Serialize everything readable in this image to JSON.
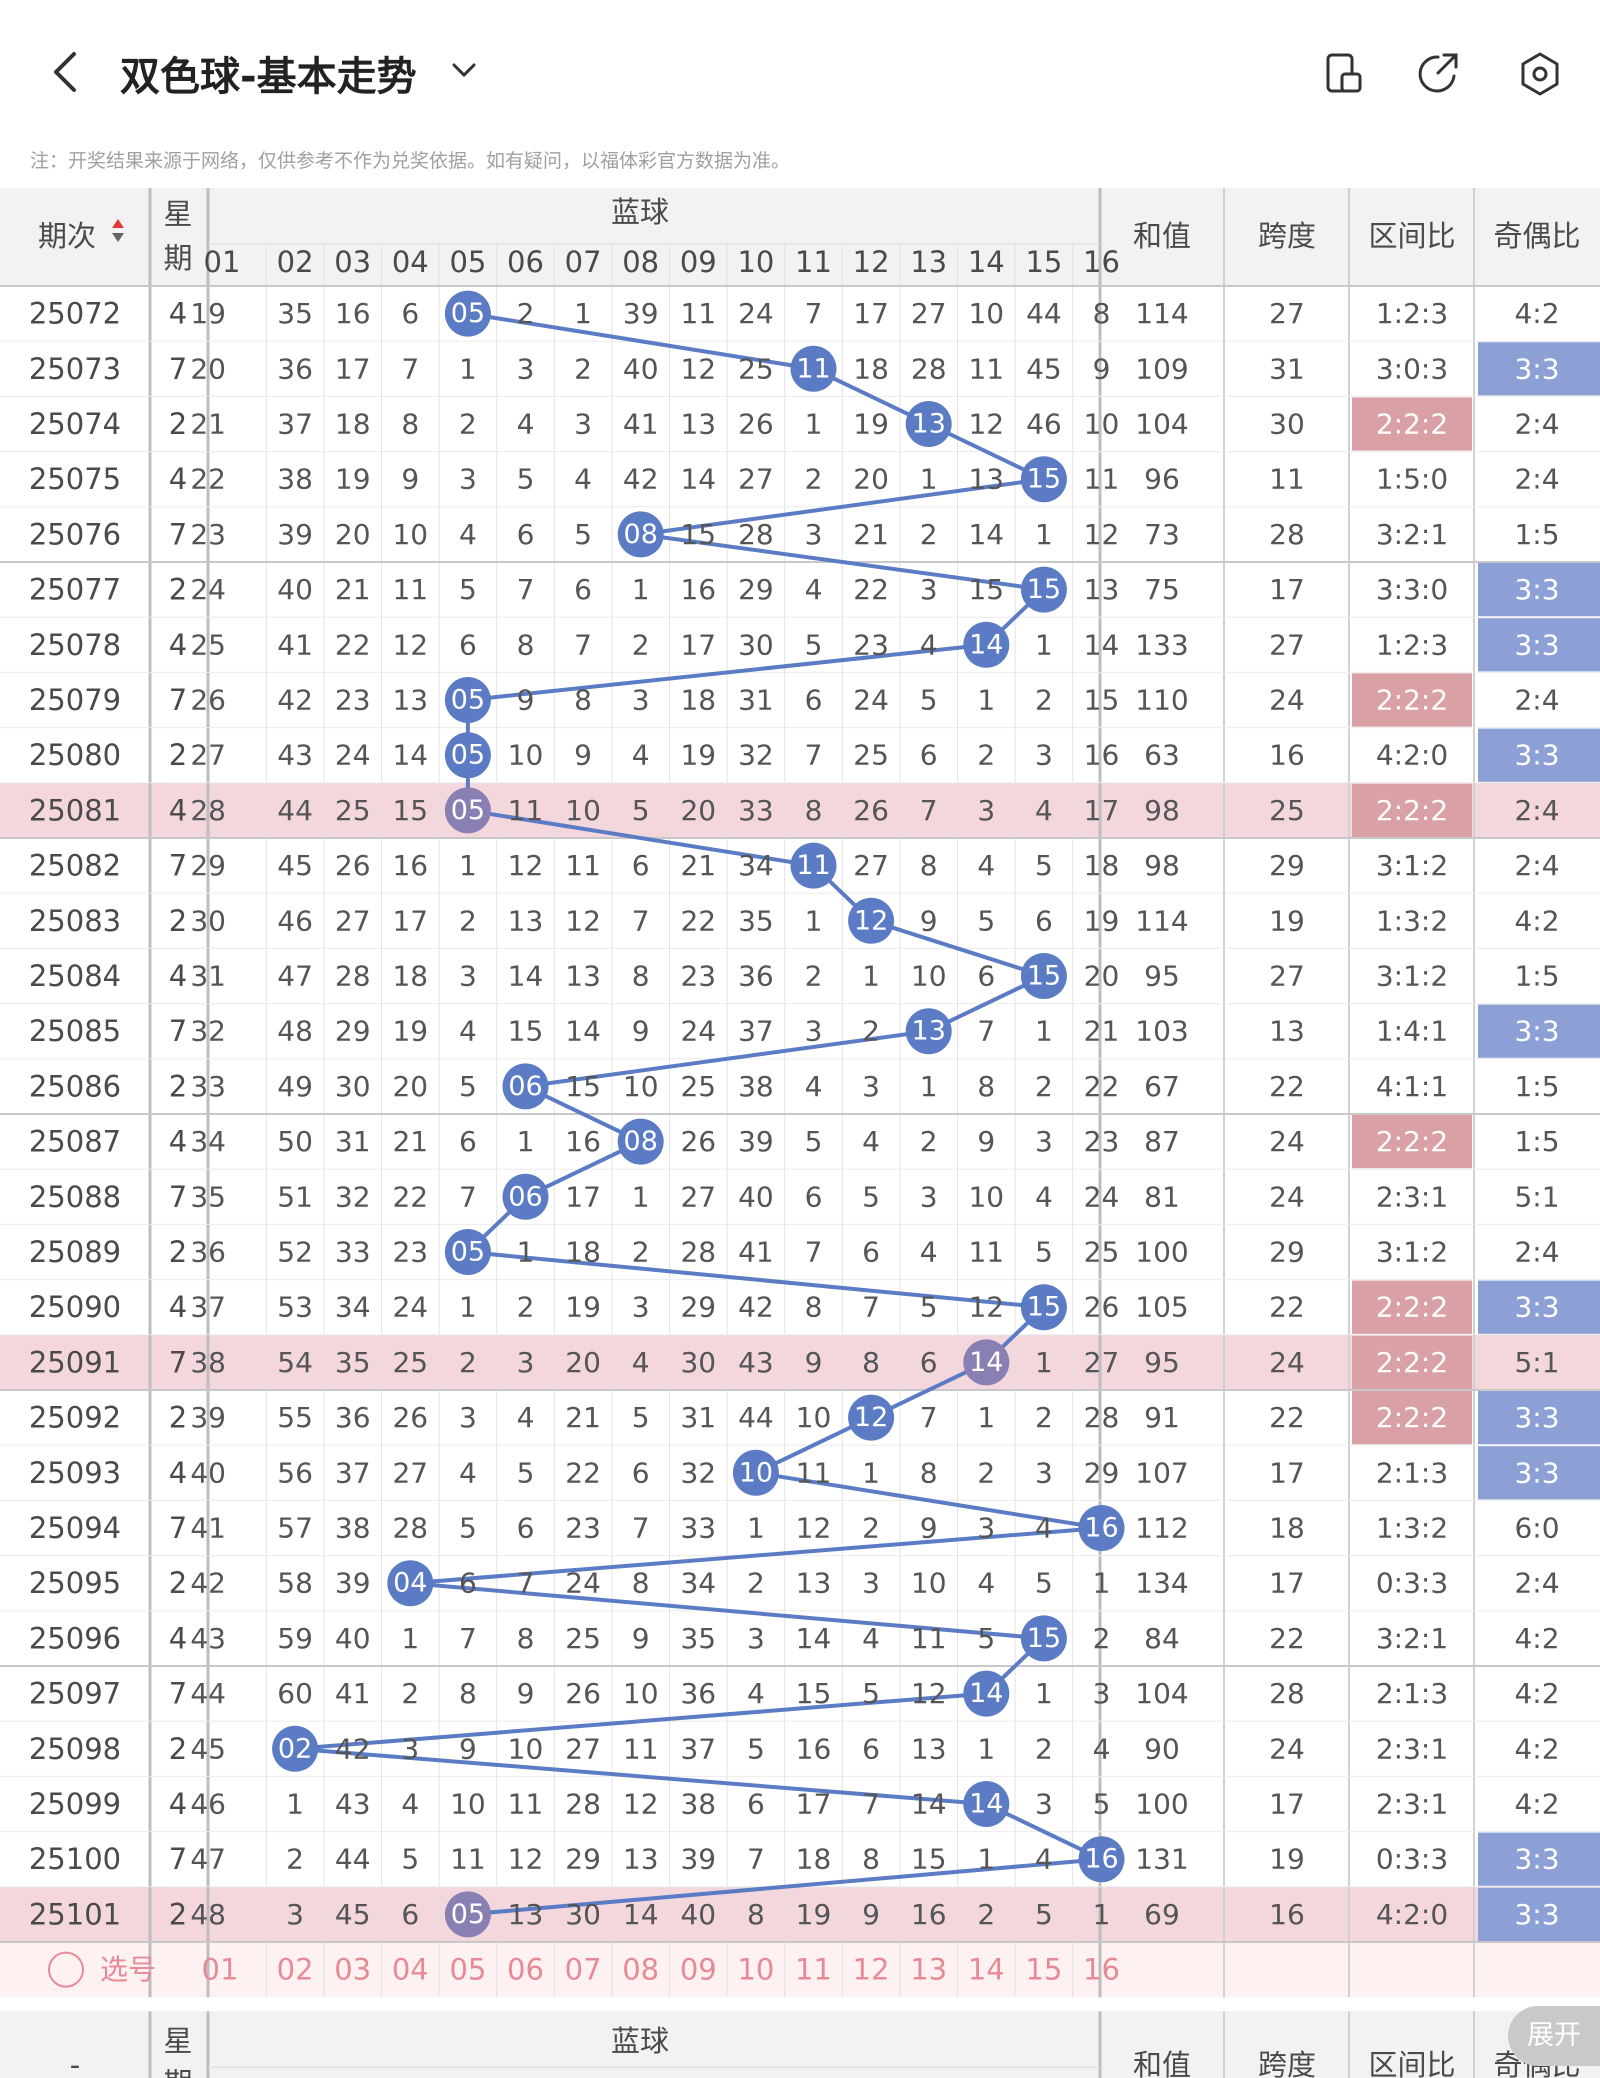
{
  "header": {
    "title": "双色球-基本走势",
    "note": "注：开奖结果来源于网络，仅供参考不作为兑奖依据。如有疑问，以福体彩官方数据为准。",
    "icons": [
      "back-arrow-icon",
      "chevron-down-icon",
      "phone-icon",
      "share-icon",
      "settings-icon"
    ]
  },
  "table": {
    "col_issue": "期次",
    "col_week": "星期",
    "blue_title": "蓝球",
    "blue_numbers": [
      "01",
      "02",
      "03",
      "04",
      "05",
      "06",
      "07",
      "08",
      "09",
      "10",
      "11",
      "12",
      "13",
      "14",
      "15",
      "16"
    ],
    "col_sum": "和值",
    "col_span": "跨度",
    "col_zone": "区间比",
    "col_parity": "奇偶比",
    "rows": [
      {
        "issue": "25072",
        "week": "4",
        "miss": [
          "19",
          "35",
          "16",
          "6",
          "05",
          "2",
          "1",
          "39",
          "11",
          "24",
          "7",
          "17",
          "27",
          "10",
          "44",
          "8"
        ],
        "hit": 5,
        "sum": "114",
        "span": "27",
        "zone": "1:2:3",
        "parity": "4:2"
      },
      {
        "issue": "25073",
        "week": "7",
        "miss": [
          "20",
          "36",
          "17",
          "7",
          "1",
          "3",
          "2",
          "40",
          "12",
          "25",
          "11",
          "18",
          "28",
          "11",
          "45",
          "9"
        ],
        "hit": 11,
        "sum": "109",
        "span": "31",
        "zone": "3:0:3",
        "parity": "3:3"
      },
      {
        "issue": "25074",
        "week": "2",
        "miss": [
          "21",
          "37",
          "18",
          "8",
          "2",
          "4",
          "3",
          "41",
          "13",
          "26",
          "1",
          "19",
          "13",
          "12",
          "46",
          "10"
        ],
        "hit": 13,
        "sum": "104",
        "span": "30",
        "zone": "2:2:2",
        "parity": "2:4"
      },
      {
        "issue": "25075",
        "week": "4",
        "miss": [
          "22",
          "38",
          "19",
          "9",
          "3",
          "5",
          "4",
          "42",
          "14",
          "27",
          "2",
          "20",
          "1",
          "13",
          "15",
          "11"
        ],
        "hit": 15,
        "sum": "96",
        "span": "11",
        "zone": "1:5:0",
        "parity": "2:4"
      },
      {
        "issue": "25076",
        "week": "7",
        "miss": [
          "23",
          "39",
          "20",
          "10",
          "4",
          "6",
          "5",
          "08",
          "15",
          "28",
          "3",
          "21",
          "2",
          "14",
          "1",
          "12"
        ],
        "hit": 8,
        "sum": "73",
        "span": "28",
        "zone": "3:2:1",
        "parity": "1:5"
      },
      {
        "issue": "25077",
        "week": "2",
        "miss": [
          "24",
          "40",
          "21",
          "11",
          "5",
          "7",
          "6",
          "1",
          "16",
          "29",
          "4",
          "22",
          "3",
          "15",
          "15",
          "13"
        ],
        "hit": 15,
        "sum": "75",
        "span": "17",
        "zone": "3:3:0",
        "parity": "3:3"
      },
      {
        "issue": "25078",
        "week": "4",
        "miss": [
          "25",
          "41",
          "22",
          "12",
          "6",
          "8",
          "7",
          "2",
          "17",
          "30",
          "5",
          "23",
          "4",
          "14",
          "1",
          "14"
        ],
        "hit": 14,
        "sum": "133",
        "span": "27",
        "zone": "1:2:3",
        "parity": "3:3"
      },
      {
        "issue": "25079",
        "week": "7",
        "miss": [
          "26",
          "42",
          "23",
          "13",
          "05",
          "9",
          "8",
          "3",
          "18",
          "31",
          "6",
          "24",
          "5",
          "1",
          "2",
          "15"
        ],
        "hit": 5,
        "sum": "110",
        "span": "24",
        "zone": "2:2:2",
        "parity": "2:4"
      },
      {
        "issue": "25080",
        "week": "2",
        "miss": [
          "27",
          "43",
          "24",
          "14",
          "05",
          "10",
          "9",
          "4",
          "19",
          "32",
          "7",
          "25",
          "6",
          "2",
          "3",
          "16"
        ],
        "hit": 5,
        "sum": "63",
        "span": "16",
        "zone": "4:2:0",
        "parity": "3:3"
      },
      {
        "issue": "25081",
        "week": "4",
        "miss": [
          "28",
          "44",
          "25",
          "15",
          "05",
          "11",
          "10",
          "5",
          "20",
          "33",
          "8",
          "26",
          "7",
          "3",
          "4",
          "17"
        ],
        "hit": 5,
        "sum": "98",
        "span": "25",
        "zone": "2:2:2",
        "parity": "2:4"
      },
      {
        "issue": "25082",
        "week": "7",
        "miss": [
          "29",
          "45",
          "26",
          "16",
          "1",
          "12",
          "11",
          "6",
          "21",
          "34",
          "11",
          "27",
          "8",
          "4",
          "5",
          "18"
        ],
        "hit": 11,
        "sum": "98",
        "span": "29",
        "zone": "3:1:2",
        "parity": "2:4"
      },
      {
        "issue": "25083",
        "week": "2",
        "miss": [
          "30",
          "46",
          "27",
          "17",
          "2",
          "13",
          "12",
          "7",
          "22",
          "35",
          "1",
          "12",
          "9",
          "5",
          "6",
          "19"
        ],
        "hit": 12,
        "sum": "114",
        "span": "19",
        "zone": "1:3:2",
        "parity": "4:2"
      },
      {
        "issue": "25084",
        "week": "4",
        "miss": [
          "31",
          "47",
          "28",
          "18",
          "3",
          "14",
          "13",
          "8",
          "23",
          "36",
          "2",
          "1",
          "10",
          "6",
          "15",
          "20"
        ],
        "hit": 15,
        "sum": "95",
        "span": "27",
        "zone": "3:1:2",
        "parity": "1:5"
      },
      {
        "issue": "25085",
        "week": "7",
        "miss": [
          "32",
          "48",
          "29",
          "19",
          "4",
          "15",
          "14",
          "9",
          "24",
          "37",
          "3",
          "2",
          "13",
          "7",
          "1",
          "21"
        ],
        "hit": 13,
        "sum": "103",
        "span": "13",
        "zone": "1:4:1",
        "parity": "3:3"
      },
      {
        "issue": "25086",
        "week": "2",
        "miss": [
          "33",
          "49",
          "30",
          "20",
          "5",
          "06",
          "15",
          "10",
          "25",
          "38",
          "4",
          "3",
          "1",
          "8",
          "2",
          "22"
        ],
        "hit": 6,
        "sum": "67",
        "span": "22",
        "zone": "4:1:1",
        "parity": "1:5"
      },
      {
        "issue": "25087",
        "week": "4",
        "miss": [
          "34",
          "50",
          "31",
          "21",
          "6",
          "1",
          "16",
          "08",
          "26",
          "39",
          "5",
          "4",
          "2",
          "9",
          "3",
          "23"
        ],
        "hit": 8,
        "sum": "87",
        "span": "24",
        "zone": "2:2:2",
        "parity": "1:5"
      },
      {
        "issue": "25088",
        "week": "7",
        "miss": [
          "35",
          "51",
          "32",
          "22",
          "7",
          "06",
          "17",
          "1",
          "27",
          "40",
          "6",
          "5",
          "3",
          "10",
          "4",
          "24"
        ],
        "hit": 6,
        "sum": "81",
        "span": "24",
        "zone": "2:3:1",
        "parity": "5:1"
      },
      {
        "issue": "25089",
        "week": "2",
        "miss": [
          "36",
          "52",
          "33",
          "23",
          "05",
          "1",
          "18",
          "2",
          "28",
          "41",
          "7",
          "6",
          "4",
          "11",
          "5",
          "25"
        ],
        "hit": 5,
        "sum": "100",
        "span": "29",
        "zone": "3:1:2",
        "parity": "2:4"
      },
      {
        "issue": "25090",
        "week": "4",
        "miss": [
          "37",
          "53",
          "34",
          "24",
          "1",
          "2",
          "19",
          "3",
          "29",
          "42",
          "8",
          "7",
          "5",
          "12",
          "15",
          "26"
        ],
        "hit": 15,
        "sum": "105",
        "span": "22",
        "zone": "2:2:2",
        "parity": "3:3"
      },
      {
        "issue": "25091",
        "week": "7",
        "miss": [
          "38",
          "54",
          "35",
          "25",
          "2",
          "3",
          "20",
          "4",
          "30",
          "43",
          "9",
          "8",
          "6",
          "14",
          "1",
          "27"
        ],
        "hit": 14,
        "sum": "95",
        "span": "24",
        "zone": "2:2:2",
        "parity": "5:1"
      },
      {
        "issue": "25092",
        "week": "2",
        "miss": [
          "39",
          "55",
          "36",
          "26",
          "3",
          "4",
          "21",
          "5",
          "31",
          "44",
          "10",
          "12",
          "7",
          "1",
          "2",
          "28"
        ],
        "hit": 12,
        "sum": "91",
        "span": "22",
        "zone": "2:2:2",
        "parity": "3:3"
      },
      {
        "issue": "25093",
        "week": "4",
        "miss": [
          "40",
          "56",
          "37",
          "27",
          "4",
          "5",
          "22",
          "6",
          "32",
          "10",
          "11",
          "1",
          "8",
          "2",
          "3",
          "29"
        ],
        "hit": 10,
        "sum": "107",
        "span": "17",
        "zone": "2:1:3",
        "parity": "3:3"
      },
      {
        "issue": "25094",
        "week": "7",
        "miss": [
          "41",
          "57",
          "38",
          "28",
          "5",
          "6",
          "23",
          "7",
          "33",
          "1",
          "12",
          "2",
          "9",
          "3",
          "4",
          "16"
        ],
        "hit": 16,
        "sum": "112",
        "span": "18",
        "zone": "1:3:2",
        "parity": "6:0"
      },
      {
        "issue": "25095",
        "week": "2",
        "miss": [
          "42",
          "58",
          "39",
          "04",
          "6",
          "7",
          "24",
          "8",
          "34",
          "2",
          "13",
          "3",
          "10",
          "4",
          "5",
          "1"
        ],
        "hit": 4,
        "sum": "134",
        "span": "17",
        "zone": "0:3:3",
        "parity": "2:4"
      },
      {
        "issue": "25096",
        "week": "4",
        "miss": [
          "43",
          "59",
          "40",
          "1",
          "7",
          "8",
          "25",
          "9",
          "35",
          "3",
          "14",
          "4",
          "11",
          "5",
          "15",
          "2"
        ],
        "hit": 15,
        "sum": "84",
        "span": "22",
        "zone": "3:2:1",
        "parity": "4:2"
      },
      {
        "issue": "25097",
        "week": "7",
        "miss": [
          "44",
          "60",
          "41",
          "2",
          "8",
          "9",
          "26",
          "10",
          "36",
          "4",
          "15",
          "5",
          "12",
          "14",
          "1",
          "3"
        ],
        "hit": 14,
        "sum": "104",
        "span": "28",
        "zone": "2:1:3",
        "parity": "4:2"
      },
      {
        "issue": "25098",
        "week": "2",
        "miss": [
          "45",
          "02",
          "42",
          "3",
          "9",
          "10",
          "27",
          "11",
          "37",
          "5",
          "16",
          "6",
          "13",
          "1",
          "2",
          "4"
        ],
        "hit": 2,
        "sum": "90",
        "span": "24",
        "zone": "2:3:1",
        "parity": "4:2"
      },
      {
        "issue": "25099",
        "week": "4",
        "miss": [
          "46",
          "1",
          "43",
          "4",
          "10",
          "11",
          "28",
          "12",
          "38",
          "6",
          "17",
          "7",
          "14",
          "14",
          "3",
          "5"
        ],
        "hit": 14,
        "sum": "100",
        "span": "17",
        "zone": "2:3:1",
        "parity": "4:2"
      },
      {
        "issue": "25100",
        "week": "7",
        "miss": [
          "47",
          "2",
          "44",
          "5",
          "11",
          "12",
          "29",
          "13",
          "39",
          "7",
          "18",
          "8",
          "15",
          "1",
          "4",
          "16"
        ],
        "hit": 16,
        "sum": "131",
        "span": "19",
        "zone": "0:3:3",
        "parity": "3:3"
      },
      {
        "issue": "25101",
        "week": "2",
        "miss": [
          "48",
          "3",
          "45",
          "6",
          "05",
          "13",
          "30",
          "14",
          "40",
          "8",
          "19",
          "9",
          "16",
          "2",
          "5",
          "1"
        ],
        "hit": 5,
        "sum": "69",
        "span": "16",
        "zone": "4:2:0",
        "parity": "3:3"
      }
    ],
    "highlight_rows": [
      "25081",
      "25091",
      "25101"
    ],
    "zone_highlight_value": "2:2:2",
    "parity_highlight_value": "3:3",
    "select_label": "选号",
    "footer_issue": "-",
    "expand_label": "展开"
  },
  "colors": {
    "ball": "#5b7cc4",
    "ball_in_pink_row": "#8a7fb3",
    "pink_row": "#f3d7dc",
    "pink_cell": "#d9a0a6",
    "blue_cell": "#8da0d6",
    "header_bg": "#f2f2f2",
    "select_text": "#e88a96"
  }
}
